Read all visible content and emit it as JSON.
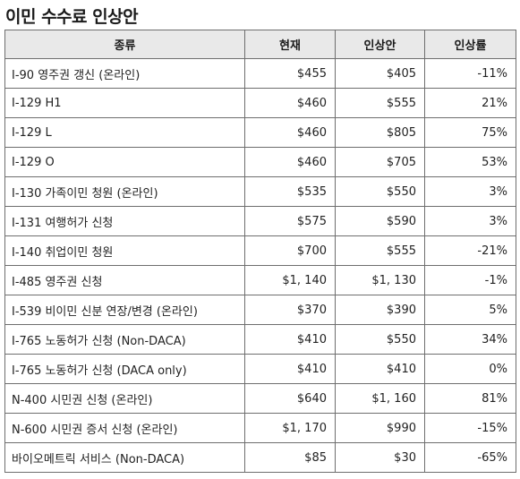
{
  "title": "이민 수수료 인상안",
  "table": {
    "headers": [
      "종류",
      "현재",
      "인상안",
      "인상률"
    ],
    "rows": [
      {
        "type": "I-90 영주권 갱신 (온라인)",
        "current": "$455",
        "proposed": "$405",
        "rate": "-11%"
      },
      {
        "type": "I-129 H1",
        "current": "$460",
        "proposed": "$555",
        "rate": "21%"
      },
      {
        "type": "I-129 L",
        "current": "$460",
        "proposed": "$805",
        "rate": "75%"
      },
      {
        "type": "I-129 O",
        "current": "$460",
        "proposed": "$705",
        "rate": "53%"
      },
      {
        "type": "I-130 가족이민 청원 (온라인)",
        "current": "$535",
        "proposed": "$550",
        "rate": "3%"
      },
      {
        "type": "I-131 여행허가 신청",
        "current": "$575",
        "proposed": "$590",
        "rate": "3%"
      },
      {
        "type": "I-140 취업이민 청원",
        "current": "$700",
        "proposed": "$555",
        "rate": "-21%"
      },
      {
        "type": "I-485 영주권 신청",
        "current": "$1, 140",
        "proposed": "$1, 130",
        "rate": "-1%"
      },
      {
        "type": "I-539 비이민 신분 연장/변경 (온라인)",
        "current": "$370",
        "proposed": "$390",
        "rate": "5%"
      },
      {
        "type": "I-765 노동허가 신청 (Non-DACA)",
        "current": "$410",
        "proposed": "$550",
        "rate": "34%"
      },
      {
        "type": "I-765 노동허가 신청 (DACA only)",
        "current": "$410",
        "proposed": "$410",
        "rate": "0%"
      },
      {
        "type": "N-400 시민권 신청 (온라인)",
        "current": "$640",
        "proposed": "$1, 160",
        "rate": "81%"
      },
      {
        "type": "N-600 시민권 증서 신청 (온라인)",
        "current": "$1, 170",
        "proposed": "$990",
        "rate": "-15%"
      },
      {
        "type": "바이오메트릭 서비스 (Non-DACA)",
        "current": "$85",
        "proposed": "$30",
        "rate": "-65%"
      }
    ]
  }
}
